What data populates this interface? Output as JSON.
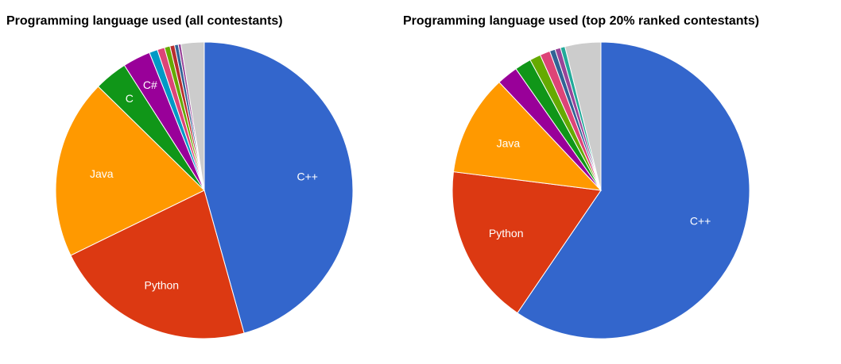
{
  "chart_data": [
    {
      "type": "pie",
      "title": "Programming language used (all contestants)",
      "slices": [
        {
          "label": "C++",
          "value": 45.5,
          "color": "#3366cc",
          "show_label": true
        },
        {
          "label": "Python",
          "value": 22.0,
          "color": "#dc3912",
          "show_label": true
        },
        {
          "label": "Java",
          "value": 19.5,
          "color": "#ff9900",
          "show_label": true
        },
        {
          "label": "C",
          "value": 3.6,
          "color": "#109618",
          "show_label": true
        },
        {
          "label": "C#",
          "value": 3.0,
          "color": "#990099",
          "show_label": true
        },
        {
          "label": "",
          "value": 0.9,
          "color": "#0099c6",
          "show_label": false
        },
        {
          "label": "",
          "value": 0.8,
          "color": "#dd4477",
          "show_label": false
        },
        {
          "label": "",
          "value": 0.6,
          "color": "#66aa00",
          "show_label": false
        },
        {
          "label": "",
          "value": 0.5,
          "color": "#b82e2e",
          "show_label": false
        },
        {
          "label": "",
          "value": 0.4,
          "color": "#316395",
          "show_label": false
        },
        {
          "label": "",
          "value": 0.3,
          "color": "#994499",
          "show_label": false
        },
        {
          "label": "",
          "value": 2.5,
          "color": "#cccccc",
          "show_label": false
        }
      ]
    },
    {
      "type": "pie",
      "title": "Programming language used (top 20% ranked contestants)",
      "slices": [
        {
          "label": "C++",
          "value": 59.5,
          "color": "#3366cc",
          "show_label": true
        },
        {
          "label": "Python",
          "value": 17.5,
          "color": "#dc3912",
          "show_label": true
        },
        {
          "label": "Java",
          "value": 11.0,
          "color": "#ff9900",
          "show_label": true
        },
        {
          "label": "",
          "value": 2.3,
          "color": "#990099",
          "show_label": false
        },
        {
          "label": "",
          "value": 1.8,
          "color": "#109618",
          "show_label": false
        },
        {
          "label": "",
          "value": 1.2,
          "color": "#66aa00",
          "show_label": false
        },
        {
          "label": "",
          "value": 1.1,
          "color": "#dd4477",
          "show_label": false
        },
        {
          "label": "",
          "value": 0.6,
          "color": "#316395",
          "show_label": false
        },
        {
          "label": "",
          "value": 0.6,
          "color": "#994499",
          "show_label": false
        },
        {
          "label": "",
          "value": 0.5,
          "color": "#22aa99",
          "show_label": false
        },
        {
          "label": "",
          "value": 3.9,
          "color": "#cccccc",
          "show_label": false
        }
      ]
    }
  ]
}
